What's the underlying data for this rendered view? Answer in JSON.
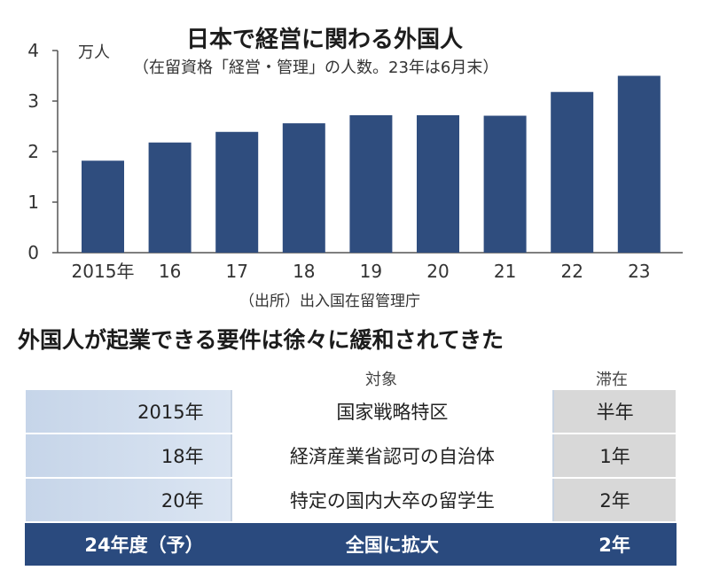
{
  "chart_data": {
    "type": "bar",
    "title": "日本で経営に関わる外国人",
    "subtitle": "（在留資格「経営・管理」の人数。23年は6月末）",
    "ylabel": "万人",
    "ylim": [
      0,
      4
    ],
    "yticks": [
      "0",
      "1",
      "2",
      "3",
      "4"
    ],
    "categories": [
      "2015年",
      "16",
      "17",
      "18",
      "19",
      "20",
      "21",
      "22",
      "23"
    ],
    "values": [
      1.82,
      2.18,
      2.39,
      2.56,
      2.72,
      2.72,
      2.71,
      3.18,
      3.5
    ],
    "source": "（出所）出入国在留管理庁",
    "bar_color": "#2f4d7e",
    "grid": false
  },
  "requirements": {
    "title": "外国人が起業できる要件は徐々に緩和されてきた",
    "header_target": "対象",
    "header_stay": "滞在",
    "rows": [
      {
        "year": "2015年",
        "target": "国家戦略特区",
        "stay": "半年"
      },
      {
        "year": "18年",
        "target": "経済産業省認可の自治体",
        "stay": "1年"
      },
      {
        "year": "20年",
        "target": "特定の国内大卒の留学生",
        "stay": "2年"
      },
      {
        "year": "24年度（予）",
        "target": "全国に拡大",
        "stay": "2年"
      }
    ],
    "highlight_color": "#2a4a7e"
  }
}
